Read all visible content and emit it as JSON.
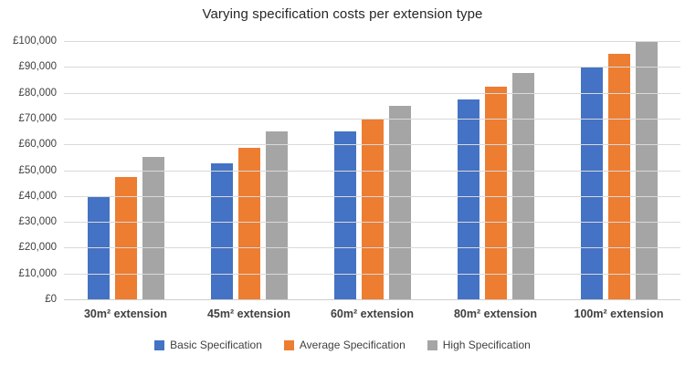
{
  "chart_data": {
    "type": "bar",
    "title": "Varying specification costs per extension type",
    "categories": [
      "30m² extension",
      "45m² extension",
      "60m² extension",
      "80m² extension",
      "100m² extension"
    ],
    "series": [
      {
        "name": "Basic Specification",
        "color": "#4472C4",
        "values": [
          40000,
          52500,
          65000,
          77500,
          90000
        ]
      },
      {
        "name": "Average Specification",
        "color": "#ED7D31",
        "values": [
          47500,
          58500,
          70000,
          82500,
          95000
        ]
      },
      {
        "name": "High Specification",
        "color": "#A5A5A5",
        "values": [
          55000,
          65000,
          75000,
          87500,
          100000
        ]
      }
    ],
    "ylim": [
      0,
      100000
    ],
    "y_tick_step": 10000,
    "y_tick_labels": [
      "£0",
      "£10,000",
      "£20,000",
      "£30,000",
      "£40,000",
      "£50,000",
      "£60,000",
      "£70,000",
      "£80,000",
      "£90,000",
      "£100,000"
    ],
    "xlabel": "",
    "ylabel": "",
    "grid": true,
    "legend_position": "bottom"
  },
  "colors": {
    "gridline": "#d9d9d9",
    "axis_line": "#cfcfcf",
    "tick_text": "#404040",
    "category_text": "#3f3f3f",
    "title_text": "#262626",
    "background": "#ffffff"
  }
}
